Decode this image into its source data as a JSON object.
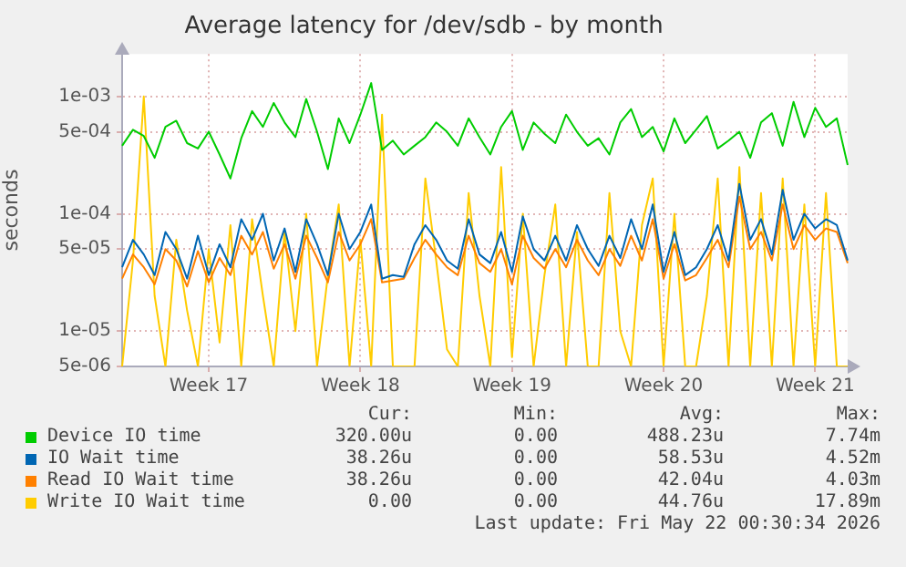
{
  "chart_data": {
    "type": "line",
    "title": "Average latency for /dev/sdb - by month",
    "ylabel": "seconds",
    "categories": [
      null,
      null,
      null,
      null,
      null,
      null,
      null,
      null,
      "Week 17",
      null,
      null,
      null,
      null,
      null,
      null,
      null,
      null,
      null,
      null,
      null,
      null,
      null,
      "Week 18",
      null,
      null,
      null,
      null,
      null,
      null,
      null,
      null,
      null,
      null,
      null,
      null,
      null,
      "Week 19",
      null,
      null,
      null,
      null,
      null,
      null,
      null,
      null,
      null,
      null,
      null,
      null,
      null,
      "Week 20",
      null,
      null,
      null,
      null,
      null,
      null,
      null,
      null,
      null,
      null,
      null,
      null,
      null,
      "Week 21",
      null,
      null,
      null
    ],
    "ylim": [
      5e-06,
      0.0023
    ],
    "yticks": [
      {
        "value": 5e-06,
        "label": "5e-06"
      },
      {
        "value": 1e-05,
        "label": "1e-05"
      },
      {
        "value": 5e-05,
        "label": "5e-05"
      },
      {
        "value": 0.0001,
        "label": "1e-04"
      },
      {
        "value": 0.0005,
        "label": "5e-04"
      },
      {
        "value": 0.001,
        "label": "1e-03"
      }
    ],
    "log": "y",
    "grid": true,
    "legend": "bottom",
    "marker": "none",
    "line_style": "solid",
    "series": [
      {
        "name": "Device IO time",
        "color": "#00cc00",
        "values": [
          0.00038,
          0.00052,
          0.00046,
          0.0003,
          0.00055,
          0.00062,
          0.0004,
          0.00036,
          0.0005,
          0.00032,
          0.0002,
          0.00044,
          0.00075,
          0.00055,
          0.00088,
          0.0006,
          0.00045,
          0.00095,
          0.0005,
          0.00024,
          0.00065,
          0.0004,
          0.0007,
          0.0013,
          0.00035,
          0.00042,
          0.00032,
          0.00038,
          0.00045,
          0.0006,
          0.0005,
          0.00038,
          0.00065,
          0.00045,
          0.00032,
          0.00055,
          0.00075,
          0.00035,
          0.0006,
          0.00048,
          0.0004,
          0.0007,
          0.0005,
          0.00038,
          0.00044,
          0.00032,
          0.0006,
          0.00078,
          0.00045,
          0.00055,
          0.00034,
          0.00065,
          0.0004,
          0.00052,
          0.00068,
          0.00036,
          0.00042,
          0.0005,
          0.0003,
          0.0006,
          0.00072,
          0.00038,
          0.0009,
          0.00045,
          0.0008,
          0.00055,
          0.00065,
          0.00026
        ]
      },
      {
        "name": "IO Wait time",
        "color": "#0066b3",
        "values": [
          3.5e-05,
          6e-05,
          4.5e-05,
          3e-05,
          7e-05,
          5e-05,
          2.8e-05,
          6.5e-05,
          3e-05,
          5.5e-05,
          3.5e-05,
          9e-05,
          6e-05,
          0.0001,
          4e-05,
          7.5e-05,
          3.2e-05,
          9e-05,
          5.5e-05,
          3e-05,
          0.0001,
          5e-05,
          7e-05,
          0.00012,
          2.8e-05,
          3e-05,
          2.9e-05,
          5.5e-05,
          8e-05,
          6e-05,
          4e-05,
          3.4e-05,
          9e-05,
          4.5e-05,
          3.8e-05,
          7e-05,
          3.2e-05,
          9.5e-05,
          5e-05,
          4e-05,
          6.5e-05,
          4e-05,
          8e-05,
          5e-05,
          3.6e-05,
          6.5e-05,
          4.2e-05,
          9e-05,
          5e-05,
          0.00012,
          3.2e-05,
          7e-05,
          3e-05,
          3.5e-05,
          5e-05,
          8e-05,
          4e-05,
          0.00018,
          6e-05,
          9e-05,
          4.5e-05,
          0.00016,
          6e-05,
          0.0001,
          7.5e-05,
          9e-05,
          8e-05,
          4e-05
        ]
      },
      {
        "name": "Read IO Wait time",
        "color": "#ff8000",
        "values": [
          2.8e-05,
          4.5e-05,
          3.5e-05,
          2.5e-05,
          5e-05,
          4e-05,
          2.4e-05,
          4.8e-05,
          2.6e-05,
          4.2e-05,
          3e-05,
          6.5e-05,
          4.5e-05,
          7e-05,
          3.4e-05,
          5.5e-05,
          2.8e-05,
          6.5e-05,
          4.2e-05,
          2.6e-05,
          7e-05,
          4e-05,
          5.5e-05,
          9e-05,
          2.6e-05,
          2.7e-05,
          2.8e-05,
          4.2e-05,
          6e-05,
          4.5e-05,
          3.5e-05,
          3e-05,
          6.5e-05,
          3.8e-05,
          3.2e-05,
          5e-05,
          2.5e-05,
          6.5e-05,
          4.2e-05,
          3.4e-05,
          5e-05,
          3.5e-05,
          6e-05,
          4e-05,
          3e-05,
          5e-05,
          3.6e-05,
          6.5e-05,
          4e-05,
          9e-05,
          2.8e-05,
          5.5e-05,
          2.7e-05,
          3e-05,
          4.2e-05,
          6e-05,
          3.5e-05,
          0.00014,
          5e-05,
          7e-05,
          4e-05,
          0.00012,
          5e-05,
          8e-05,
          6e-05,
          7.5e-05,
          7e-05,
          3.8e-05
        ]
      },
      {
        "name": "Write IO Wait time",
        "color": "#ffcc00",
        "values": [
          5e-06,
          4e-05,
          0.001,
          2e-05,
          5e-06,
          6e-05,
          1.5e-05,
          5e-06,
          5e-05,
          8e-06,
          8e-05,
          5e-06,
          9e-05,
          2e-05,
          5e-06,
          7e-05,
          1e-05,
          0.0001,
          5e-06,
          3e-05,
          0.00012,
          5e-06,
          6e-05,
          5e-06,
          0.0007,
          5e-06,
          5e-06,
          5e-06,
          0.0002,
          4e-05,
          7e-06,
          5e-06,
          0.00015,
          2e-05,
          5e-06,
          0.00025,
          6e-06,
          0.0001,
          5e-06,
          3e-05,
          0.00012,
          5e-06,
          7e-05,
          5e-06,
          5e-06,
          0.00015,
          1e-05,
          5e-06,
          8e-05,
          0.0002,
          5e-06,
          0.0001,
          5e-06,
          5e-06,
          2e-05,
          0.0002,
          5e-06,
          0.00025,
          5e-06,
          0.00015,
          5e-06,
          0.0002,
          5e-06,
          0.00012,
          5e-06,
          0.00015,
          5e-06,
          5e-06
        ]
      }
    ],
    "annotations": [
      "Cur:",
      "Min:",
      "Avg:",
      "Max:",
      "320.00u",
      "0.00",
      "488.23u",
      "7.74m",
      "38.26u",
      "0.00",
      "58.53u",
      "4.52m",
      "38.26u",
      "0.00",
      "42.04u",
      "4.03m",
      "0.00",
      "0.00",
      "44.76u",
      "17.89m",
      "Last update: Fri May 22 00:30:34 2026"
    ]
  }
}
